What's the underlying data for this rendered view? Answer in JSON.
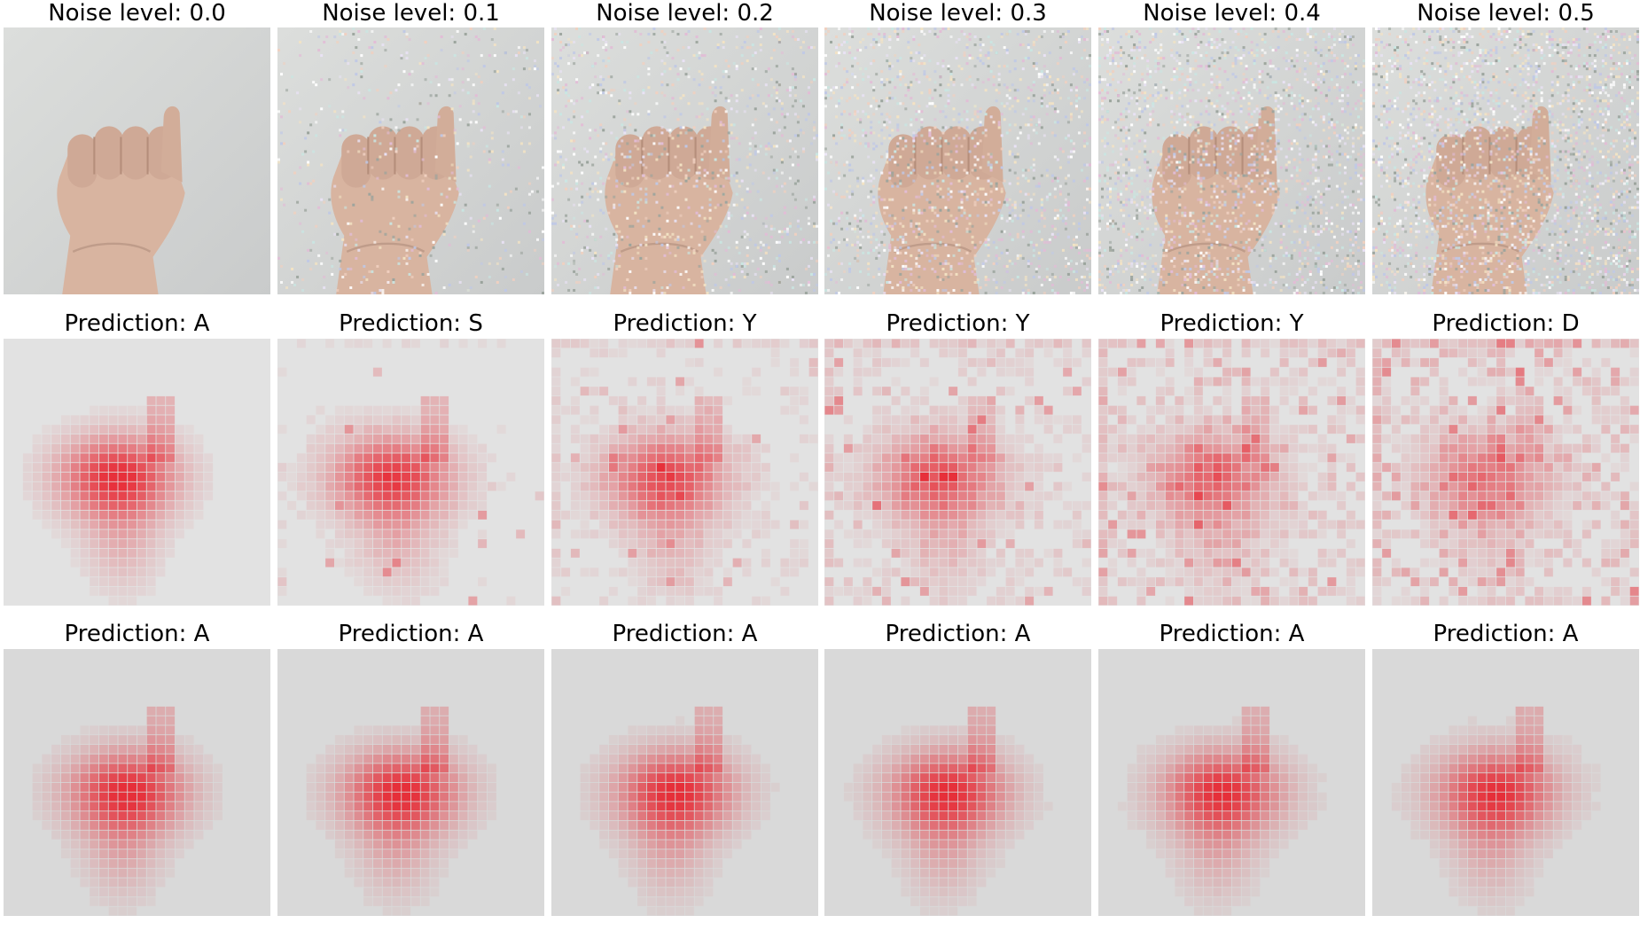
{
  "rows": [
    {
      "kind": "noisy-input",
      "titles": [
        "Noise level: 0.0",
        "Noise level: 0.1",
        "Noise level: 0.2",
        "Noise level: 0.3",
        "Noise level: 0.4",
        "Noise level: 0.5"
      ],
      "noise_levels": [
        0.0,
        0.1,
        0.2,
        0.3,
        0.4,
        0.5
      ]
    },
    {
      "kind": "saliency-baseline",
      "titles": [
        "Prediction: A",
        "Prediction: S",
        "Prediction: Y",
        "Prediction: Y",
        "Prediction: Y",
        "Prediction: D"
      ],
      "noise_levels": [
        0.0,
        0.1,
        0.2,
        0.3,
        0.4,
        0.5
      ]
    },
    {
      "kind": "saliency-robust",
      "titles": [
        "Prediction: A",
        "Prediction: A",
        "Prediction: A",
        "Prediction: A",
        "Prediction: A",
        "Prediction: A"
      ],
      "noise_levels": [
        0.0,
        0.1,
        0.2,
        0.3,
        0.4,
        0.5
      ]
    }
  ],
  "colors": {
    "wall": "#d6d8d6",
    "skin": "#d9b6a3",
    "heat": "#e8101c",
    "heat_bg": "#d7d7d7"
  }
}
